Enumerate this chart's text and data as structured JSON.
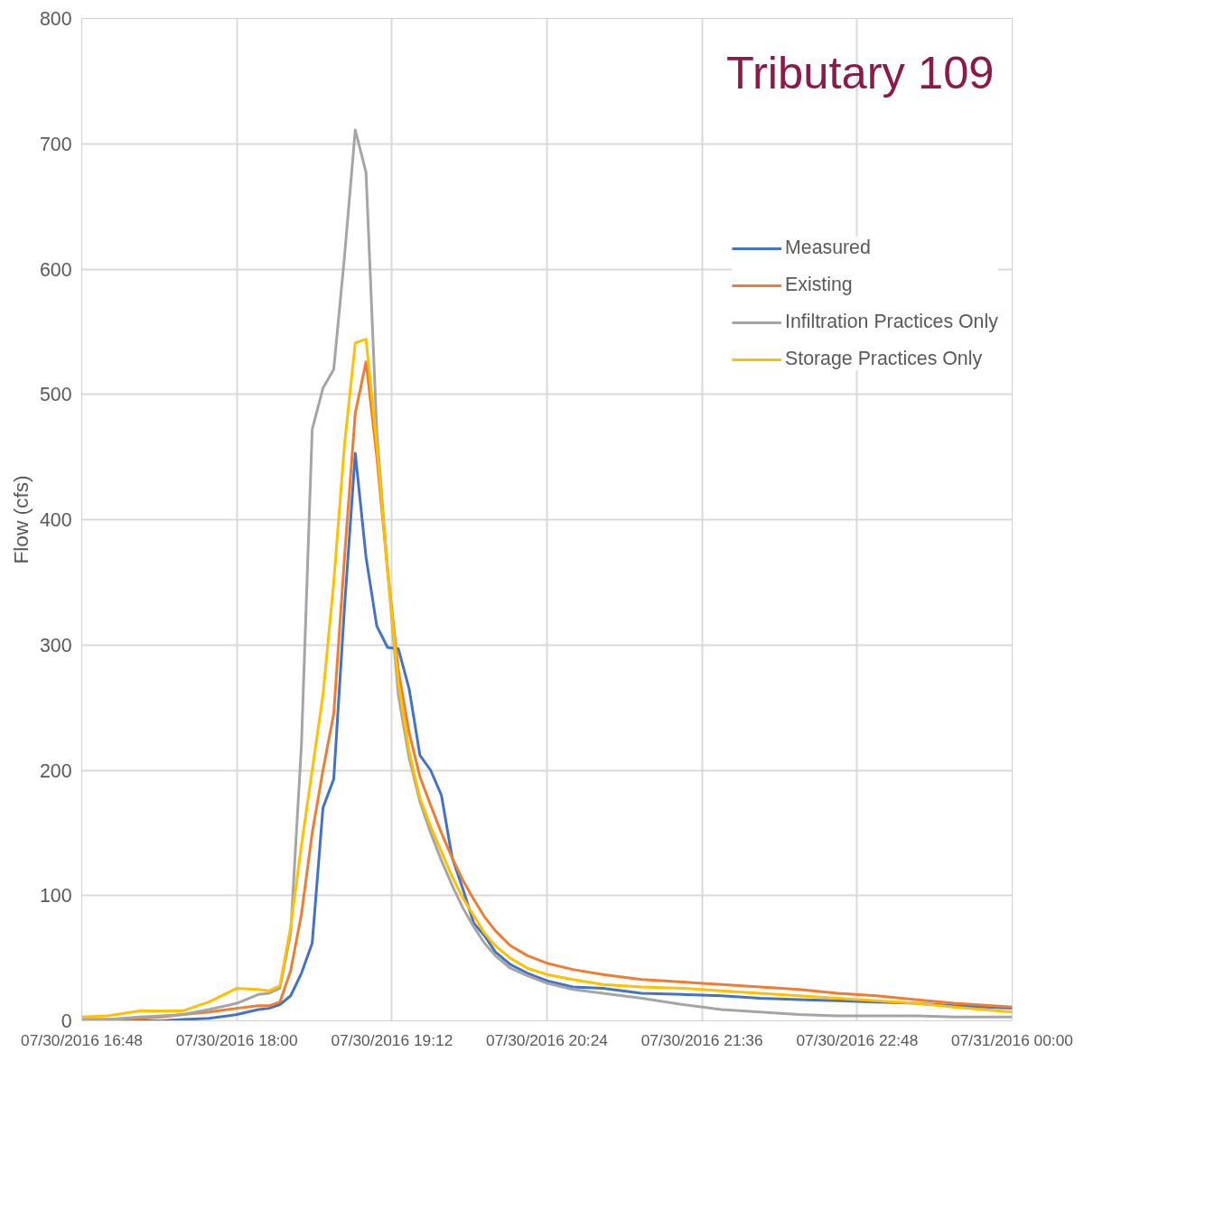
{
  "chart_data": {
    "type": "line",
    "title": "Tributary 109",
    "ylabel": "Flow (cfs)",
    "x": [
      "2016-07-30T16:48",
      "2016-07-30T17:00",
      "2016-07-30T17:15",
      "2016-07-30T17:25",
      "2016-07-30T17:35",
      "2016-07-30T17:47",
      "2016-07-30T18:00",
      "2016-07-30T18:10",
      "2016-07-30T18:15",
      "2016-07-30T18:20",
      "2016-07-30T18:25",
      "2016-07-30T18:30",
      "2016-07-30T18:35",
      "2016-07-30T18:40",
      "2016-07-30T18:45",
      "2016-07-30T18:50",
      "2016-07-30T18:55",
      "2016-07-30T19:00",
      "2016-07-30T19:05",
      "2016-07-30T19:10",
      "2016-07-30T19:15",
      "2016-07-30T19:20",
      "2016-07-30T19:25",
      "2016-07-30T19:30",
      "2016-07-30T19:35",
      "2016-07-30T19:40",
      "2016-07-30T19:45",
      "2016-07-30T19:50",
      "2016-07-30T19:55",
      "2016-07-30T20:00",
      "2016-07-30T20:07",
      "2016-07-30T20:15",
      "2016-07-30T20:24",
      "2016-07-30T20:36",
      "2016-07-30T20:50",
      "2016-07-30T21:08",
      "2016-07-30T21:27",
      "2016-07-30T21:45",
      "2016-07-30T22:03",
      "2016-07-30T22:21",
      "2016-07-30T22:39",
      "2016-07-30T22:57",
      "2016-07-30T23:15",
      "2016-07-30T23:33",
      "2016-07-31T00:00"
    ],
    "series": [
      {
        "name": "Measured",
        "color": "#4472c4",
        "values": [
          0,
          0,
          0,
          0,
          1,
          2,
          5,
          9,
          10,
          13,
          20,
          38,
          62,
          170,
          193,
          330,
          453,
          370,
          315,
          298,
          297,
          265,
          212,
          200,
          180,
          130,
          105,
          78,
          68,
          55,
          45,
          38,
          32,
          27,
          26,
          22,
          21,
          20,
          18,
          17,
          16,
          15,
          14,
          12,
          10
        ]
      },
      {
        "name": "Existing",
        "color": "#ed7d31",
        "values": [
          1,
          1,
          2,
          3,
          5,
          7,
          10,
          12,
          12,
          15,
          40,
          85,
          150,
          200,
          245,
          370,
          485,
          526,
          450,
          360,
          280,
          230,
          195,
          172,
          150,
          130,
          112,
          97,
          83,
          72,
          60,
          52,
          46,
          41,
          37,
          33,
          31,
          29,
          27,
          25,
          22,
          20,
          17,
          14,
          11
        ]
      },
      {
        "name": "Infiltration Practices Only",
        "color": "#a5a5a5",
        "values": [
          1,
          1,
          3,
          4,
          5,
          9,
          14,
          21,
          22,
          26,
          70,
          220,
          472,
          505,
          520,
          610,
          711,
          677,
          470,
          360,
          260,
          210,
          175,
          150,
          128,
          108,
          90,
          75,
          62,
          52,
          42,
          36,
          30,
          25,
          22,
          18,
          13,
          9,
          7,
          5,
          4,
          4,
          4,
          3,
          3
        ]
      },
      {
        "name": "Storage Practices Only",
        "color": "#ffc000",
        "values": [
          3,
          4,
          8,
          8,
          8,
          15,
          26,
          25,
          24,
          28,
          75,
          140,
          200,
          260,
          350,
          460,
          541,
          544,
          460,
          360,
          270,
          215,
          178,
          155,
          135,
          115,
          98,
          84,
          70,
          60,
          50,
          42,
          37,
          33,
          29,
          27,
          26,
          24,
          22,
          20,
          18,
          16,
          14,
          11,
          7
        ]
      }
    ],
    "xlim": [
      "2016-07-30T16:48",
      "2016-07-31T00:00"
    ],
    "xticks": [
      {
        "value": "2016-07-30T16:48",
        "label": "07/30/2016 16:48"
      },
      {
        "value": "2016-07-30T18:00",
        "label": "07/30/2016 18:00"
      },
      {
        "value": "2016-07-30T19:12",
        "label": "07/30/2016 19:12"
      },
      {
        "value": "2016-07-30T20:24",
        "label": "07/30/2016 20:24"
      },
      {
        "value": "2016-07-30T21:36",
        "label": "07/30/2016 21:36"
      },
      {
        "value": "2016-07-30T22:48",
        "label": "07/30/2016 22:48"
      },
      {
        "value": "2016-07-31T00:00",
        "label": "07/31/2016 00:00"
      }
    ],
    "ylim": [
      0,
      800
    ],
    "yticks": [
      0,
      100,
      200,
      300,
      400,
      500,
      600,
      700,
      800
    ],
    "grid": true,
    "legend": "right",
    "marker": "none",
    "line_style": "solid"
  }
}
